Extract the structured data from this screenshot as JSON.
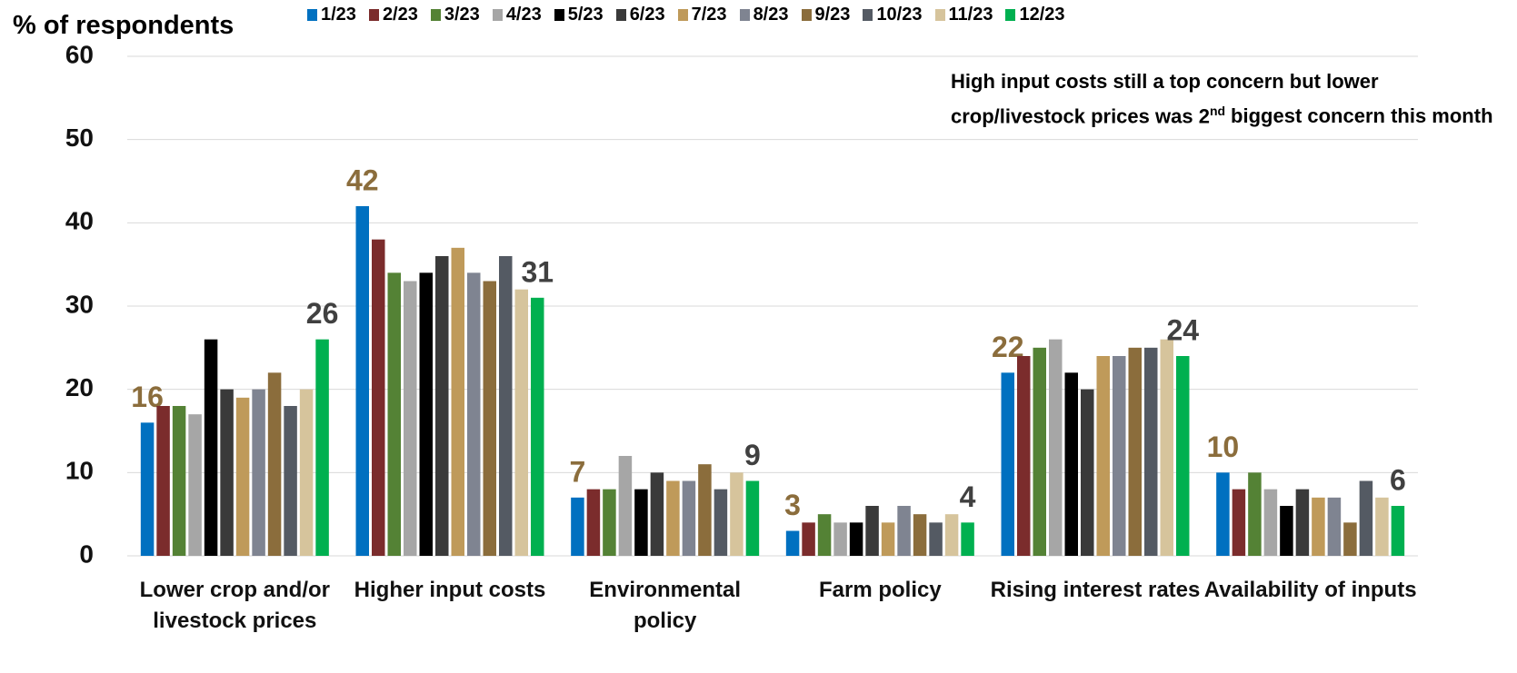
{
  "chart_data": {
    "type": "bar",
    "y_label": "% of respondents",
    "annotation": [
      "High input costs still a top concern but lower crop/livestock prices was 2",
      "nd",
      "biggest concern this month"
    ],
    "categories": [
      "Lower crop and/or livestock prices",
      "Higher input costs",
      "Environmental policy",
      "Farm policy",
      "Rising interest rates",
      "Availability of inputs"
    ],
    "ylim": [
      0,
      60
    ],
    "yticks": [
      0,
      10,
      20,
      30,
      40,
      50,
      60
    ],
    "grid": true,
    "series": [
      {
        "name": "1/23",
        "color": "#0070c0",
        "values": [
          16,
          42,
          7,
          3,
          22,
          10
        ],
        "show_labels": true,
        "label_color": "#8b6d3c"
      },
      {
        "name": "2/23",
        "color": "#7b2c2c",
        "values": [
          18,
          38,
          8,
          4,
          24,
          8
        ]
      },
      {
        "name": "3/23",
        "color": "#548235",
        "values": [
          18,
          34,
          8,
          5,
          25,
          10
        ]
      },
      {
        "name": "4/23",
        "color": "#a6a6a6",
        "values": [
          17,
          33,
          12,
          4,
          26,
          8
        ]
      },
      {
        "name": "5/23",
        "color": "#000000",
        "values": [
          26,
          34,
          8,
          4,
          22,
          6
        ]
      },
      {
        "name": "6/23",
        "color": "#3a3a3a",
        "values": [
          20,
          36,
          10,
          6,
          20,
          8
        ]
      },
      {
        "name": "7/23",
        "color": "#bf9a5a",
        "values": [
          19,
          37,
          9,
          4,
          24,
          7
        ]
      },
      {
        "name": "8/23",
        "color": "#7f8491",
        "values": [
          20,
          34,
          9,
          6,
          24,
          7
        ]
      },
      {
        "name": "9/23",
        "color": "#8b6d3c",
        "values": [
          22,
          33,
          11,
          5,
          25,
          4
        ]
      },
      {
        "name": "10/23",
        "color": "#545a63",
        "values": [
          18,
          36,
          8,
          4,
          25,
          9
        ]
      },
      {
        "name": "11/23",
        "color": "#d6c49c",
        "values": [
          20,
          32,
          10,
          5,
          26,
          7
        ]
      },
      {
        "name": "12/23",
        "color": "#00b050",
        "values": [
          26,
          31,
          9,
          4,
          24,
          6
        ],
        "show_labels": true,
        "label_color": "#404040"
      }
    ]
  }
}
